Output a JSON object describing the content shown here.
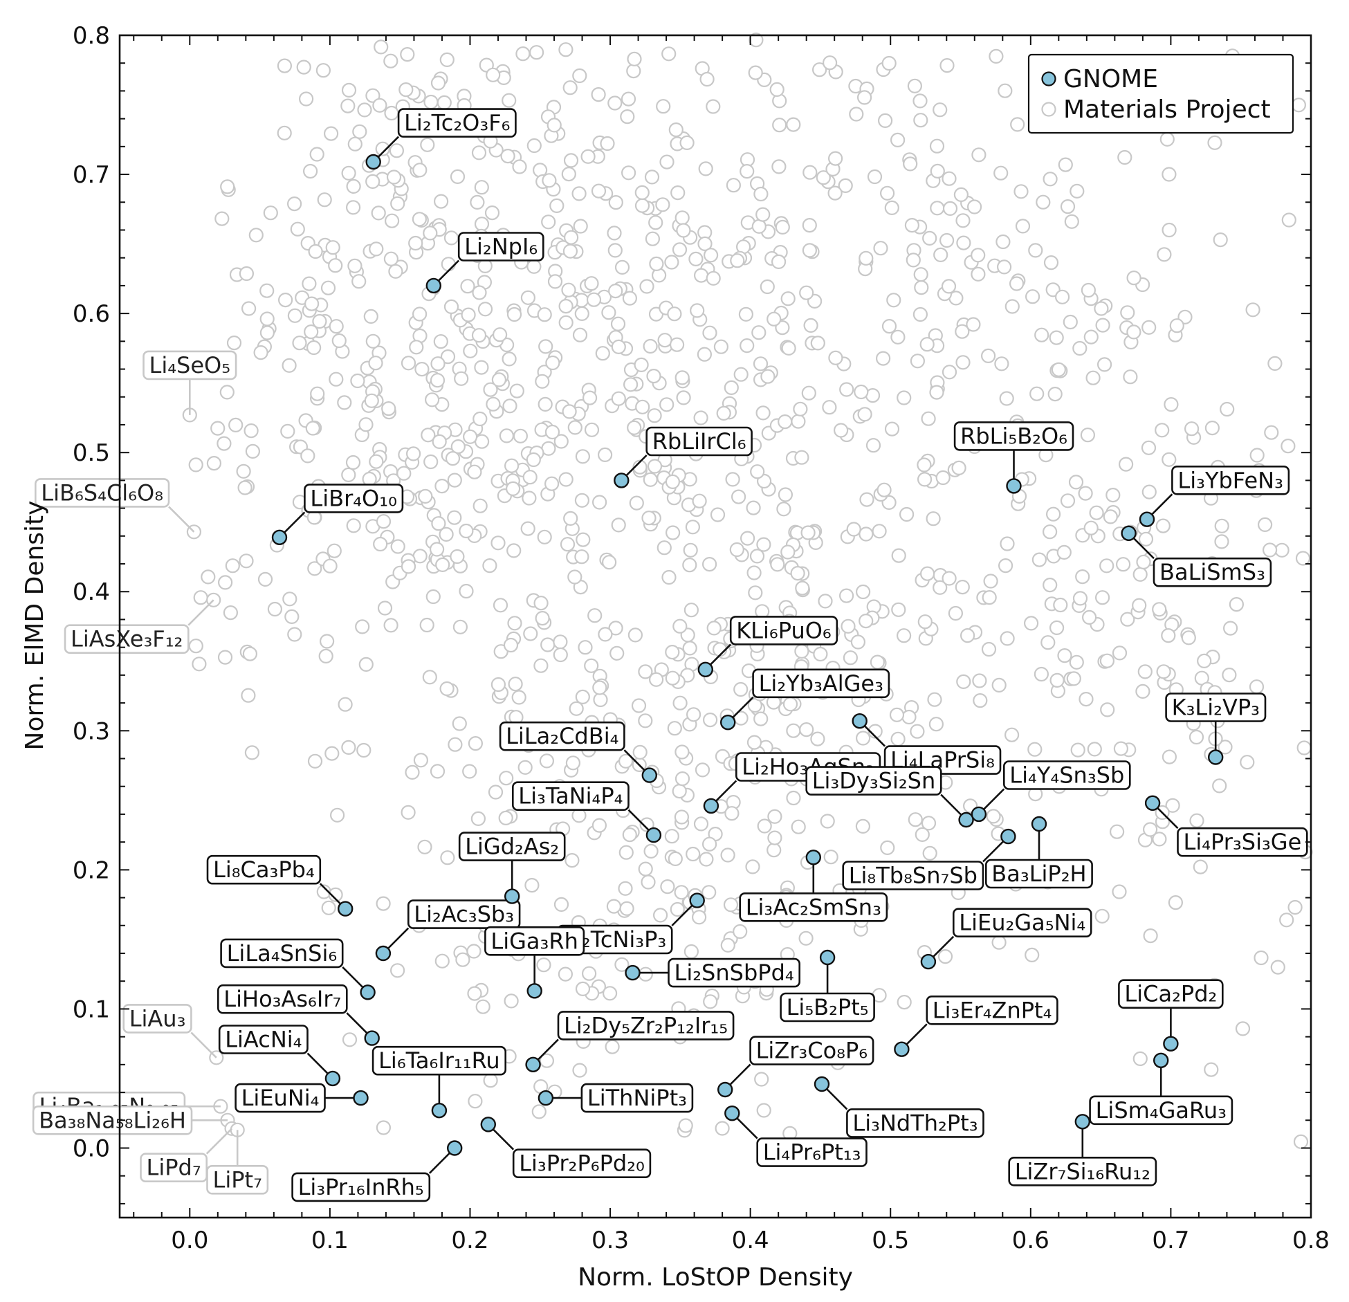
{
  "chart_data": {
    "type": "scatter",
    "xlabel": "Norm. LoStOP Density",
    "ylabel": "Norm. ElMD Density",
    "xlim": [
      -0.05,
      0.8
    ],
    "ylim": [
      -0.05,
      0.8
    ],
    "x_ticks": [
      "0.0",
      "0.1",
      "0.2",
      "0.3",
      "0.4",
      "0.5",
      "0.6",
      "0.7",
      "0.8"
    ],
    "y_ticks": [
      "0.0",
      "0.1",
      "0.2",
      "0.3",
      "0.4",
      "0.5",
      "0.6",
      "0.7",
      "0.8"
    ],
    "legend": {
      "location": "top-right",
      "entries": [
        "GNOME",
        "Materials Project"
      ]
    },
    "colors": {
      "gnome": "#87c4dc",
      "materials_project": "#c8c8c8",
      "axis": "#111111"
    },
    "series": [
      {
        "name": "GNOME",
        "points": [
          {
            "label": "Li₂Tc₂O₃F₆",
            "x": 0.131,
            "y": 0.709,
            "label_pos": "upper-right"
          },
          {
            "label": "Li₂NpI₆",
            "x": 0.174,
            "y": 0.62,
            "label_pos": "upper-right"
          },
          {
            "label": "LiBr₄O₁₀",
            "x": 0.064,
            "y": 0.439,
            "label_pos": "upper-right"
          },
          {
            "label": "RbLiIrCl₆",
            "x": 0.308,
            "y": 0.48,
            "label_pos": "upper-right"
          },
          {
            "label": "RbLi₅B₂O₆",
            "x": 0.588,
            "y": 0.476,
            "label_pos": "up"
          },
          {
            "label": "Li₃YbFeN₃",
            "x": 0.683,
            "y": 0.452,
            "label_pos": "upper-right"
          },
          {
            "label": "BaLiSmS₃",
            "x": 0.67,
            "y": 0.442,
            "label_pos": "lower-right"
          },
          {
            "label": "KLi₆PuO₆",
            "x": 0.368,
            "y": 0.344,
            "label_pos": "upper-right"
          },
          {
            "label": "Li₂Yb₃AlGe₃",
            "x": 0.384,
            "y": 0.306,
            "label_pos": "upper-right"
          },
          {
            "label": "Li₄LaPrSi₈",
            "x": 0.478,
            "y": 0.307,
            "label_pos": "lower-right"
          },
          {
            "label": "K₃Li₂VP₃",
            "x": 0.732,
            "y": 0.281,
            "label_pos": "up"
          },
          {
            "label": "LiLa₂CdBi₄",
            "x": 0.328,
            "y": 0.268,
            "label_pos": "upper-left"
          },
          {
            "label": "Li₂Ho₃AgSn₃",
            "x": 0.372,
            "y": 0.246,
            "label_pos": "upper-right"
          },
          {
            "label": "Li₃Dy₃Si₂Sn",
            "x": 0.554,
            "y": 0.236,
            "label_pos": "upper-left"
          },
          {
            "label": "Li₄Y₄Sn₃Sb",
            "x": 0.563,
            "y": 0.24,
            "label_pos": "upper-right"
          },
          {
            "label": "Li₄Pr₃Si₃Ge",
            "x": 0.687,
            "y": 0.248,
            "label_pos": "lower-right"
          },
          {
            "label": "Li₃TaNi₄P₄",
            "x": 0.331,
            "y": 0.225,
            "label_pos": "upper-left"
          },
          {
            "label": "Li₈Tb₈Sn₇Sb",
            "x": 0.584,
            "y": 0.224,
            "label_pos": "lower-left"
          },
          {
            "label": "Ba₃LiP₂H",
            "x": 0.606,
            "y": 0.233,
            "label_pos": "down"
          },
          {
            "label": "Li₃Ac₂SmSn₃",
            "x": 0.445,
            "y": 0.209,
            "label_pos": "down"
          },
          {
            "label": "LiGd₂As₂",
            "x": 0.23,
            "y": 0.181,
            "label_pos": "up"
          },
          {
            "label": "Li₂TcNi₃P₃",
            "x": 0.362,
            "y": 0.178,
            "label_pos": "lower-left"
          },
          {
            "label": "Li₈Ca₃Pb₄",
            "x": 0.111,
            "y": 0.172,
            "label_pos": "upper-left"
          },
          {
            "label": "Li₂Ac₃Sb₃",
            "x": 0.138,
            "y": 0.14,
            "label_pos": "upper-right"
          },
          {
            "label": "LiLa₄SnSi₆",
            "x": 0.127,
            "y": 0.112,
            "label_pos": "upper-left"
          },
          {
            "label": "LiGa₃Rh",
            "x": 0.246,
            "y": 0.113,
            "label_pos": "up"
          },
          {
            "label": "Li₂SnSbPd₄",
            "x": 0.316,
            "y": 0.126,
            "label_pos": "right"
          },
          {
            "label": "Li₅B₂Pt₅",
            "x": 0.455,
            "y": 0.137,
            "label_pos": "down"
          },
          {
            "label": "LiEu₂Ga₅Ni₄",
            "x": 0.527,
            "y": 0.134,
            "label_pos": "upper-right"
          },
          {
            "label": "LiHo₃As₆Ir₇",
            "x": 0.13,
            "y": 0.079,
            "label_pos": "upper-left"
          },
          {
            "label": "LiCa₂Pd₂",
            "x": 0.7,
            "y": 0.075,
            "label_pos": "up"
          },
          {
            "label": "Li₃Er₄ZnPt₄",
            "x": 0.508,
            "y": 0.071,
            "label_pos": "upper-right"
          },
          {
            "label": "LiSm₄GaRu₃",
            "x": 0.693,
            "y": 0.063,
            "label_pos": "down"
          },
          {
            "label": "Li₂Dy₅Zr₂P₁₂Ir₁₅",
            "x": 0.245,
            "y": 0.06,
            "label_pos": "upper-right"
          },
          {
            "label": "LiZr₃Co₈P₆",
            "x": 0.382,
            "y": 0.042,
            "label_pos": "upper-right"
          },
          {
            "label": "LiAcNi₄",
            "x": 0.102,
            "y": 0.05,
            "label_pos": "upper-left"
          },
          {
            "label": "Li₃NdTh₂Pt₃",
            "x": 0.451,
            "y": 0.046,
            "label_pos": "lower-right"
          },
          {
            "label": "LiEuNi₄",
            "x": 0.122,
            "y": 0.036,
            "label_pos": "left"
          },
          {
            "label": "Li₆Ta₆Ir₁₁Ru",
            "x": 0.178,
            "y": 0.027,
            "label_pos": "up"
          },
          {
            "label": "LiThNiPt₃",
            "x": 0.254,
            "y": 0.036,
            "label_pos": "right"
          },
          {
            "label": "Li₄Pr₆Pt₁₃",
            "x": 0.387,
            "y": 0.025,
            "label_pos": "lower-right"
          },
          {
            "label": "Li₃Pr₂P₆Pd₂₀",
            "x": 0.213,
            "y": 0.017,
            "label_pos": "lower-right"
          },
          {
            "label": "LiZr₇Si₁₆Ru₁₂",
            "x": 0.637,
            "y": 0.019,
            "label_pos": "down"
          },
          {
            "label": "Li₃Pr₁₆InRh₅",
            "x": 0.189,
            "y": 0.0,
            "label_pos": "lower-left"
          }
        ]
      },
      {
        "name": "Materials Project",
        "count": 1400,
        "labeled_points": [
          {
            "label": "Li₄SeO₅",
            "x": 0.0,
            "y": 0.527,
            "label_pos": "up"
          },
          {
            "label": "LiB₆S₄Cl₆O₈",
            "x": 0.003,
            "y": 0.443,
            "label_pos": "upper-left"
          },
          {
            "label": "LiAsXe₃F₁₂",
            "x": 0.017,
            "y": 0.394,
            "label_pos": "lower-left"
          },
          {
            "label": "LiAu₃",
            "x": 0.019,
            "y": 0.065,
            "label_pos": "upper-left"
          },
          {
            "label": "Li₄Ba₁.₉₅N₀.₀₅",
            "x": 0.022,
            "y": 0.03,
            "label_pos": "left"
          },
          {
            "label": "Ba₃₈Na₅₈Li₂₆H",
            "x": 0.027,
            "y": 0.02,
            "label_pos": "left"
          },
          {
            "label": "LiPd₇",
            "x": 0.03,
            "y": 0.014,
            "label_pos": "lower-left"
          },
          {
            "label": "LiPt₇",
            "x": 0.034,
            "y": 0.013,
            "label_pos": "down"
          }
        ]
      }
    ]
  }
}
